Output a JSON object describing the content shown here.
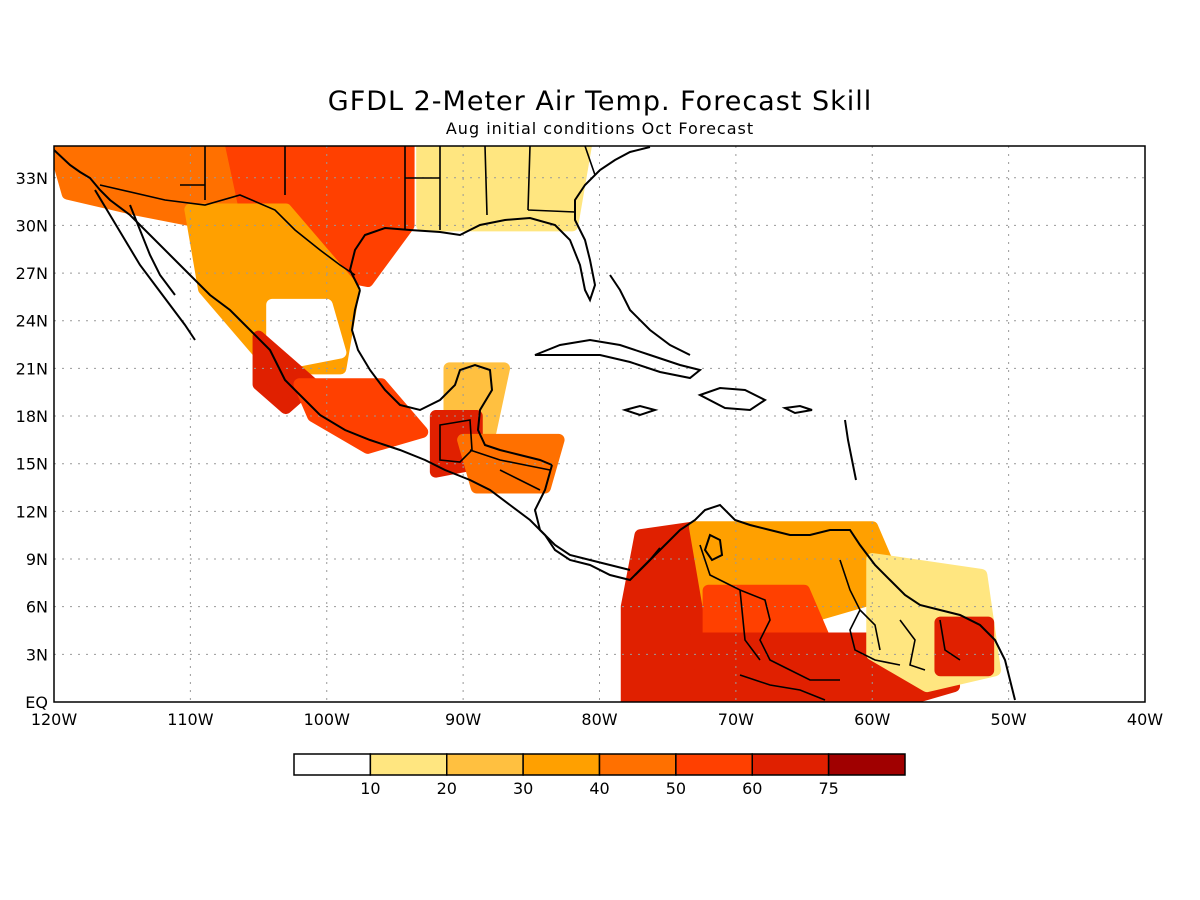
{
  "title": "GFDL 2-Meter Air Temp. Forecast Skill",
  "subtitle": "Aug initial conditions  Oct Forecast",
  "map": {
    "lon_range": [
      -120,
      -40
    ],
    "lat_range": [
      0,
      35
    ],
    "x_ticks": [
      "120W",
      "110W",
      "100W",
      "90W",
      "80W",
      "70W",
      "60W",
      "50W",
      "40W"
    ],
    "y_ticks": [
      "EQ",
      "3N",
      "6N",
      "9N",
      "12N",
      "15N",
      "18N",
      "21N",
      "24N",
      "27N",
      "30N",
      "33N"
    ],
    "grid": "dotted",
    "skill_colors": {
      "lt10": "#ffffff",
      "10": "#ffe680",
      "20": "#ffc040",
      "30": "#ffa000",
      "40": "#ff7000",
      "50": "#ff4000",
      "60": "#e02000",
      "75": "#a00000"
    },
    "regions": [
      {
        "name": "southwest-us",
        "level": "40"
      },
      {
        "name": "texas",
        "level": "50"
      },
      {
        "name": "southeast-us",
        "level": "10"
      },
      {
        "name": "northwest-mexico",
        "level": "30"
      },
      {
        "name": "central-mexico-plateau",
        "level": "lt10"
      },
      {
        "name": "western-mexico",
        "level": "60"
      },
      {
        "name": "southern-mexico",
        "level": "50"
      },
      {
        "name": "yucatan",
        "level": "20"
      },
      {
        "name": "guatemala",
        "level": "60"
      },
      {
        "name": "honduras",
        "level": "40"
      },
      {
        "name": "colombia-west",
        "level": "60"
      },
      {
        "name": "venezuela-north",
        "level": "30"
      },
      {
        "name": "venezuela-south",
        "level": "50"
      },
      {
        "name": "amazon-north",
        "level": "60"
      },
      {
        "name": "guiana",
        "level": "10"
      },
      {
        "name": "french-guiana",
        "level": "60"
      }
    ]
  },
  "colorbar": {
    "labels": [
      "10",
      "20",
      "30",
      "40",
      "50",
      "60",
      "75"
    ],
    "colors": [
      "#ffffff",
      "#ffe680",
      "#ffc040",
      "#ffa000",
      "#ff7000",
      "#ff4000",
      "#e02000",
      "#a00000"
    ]
  }
}
